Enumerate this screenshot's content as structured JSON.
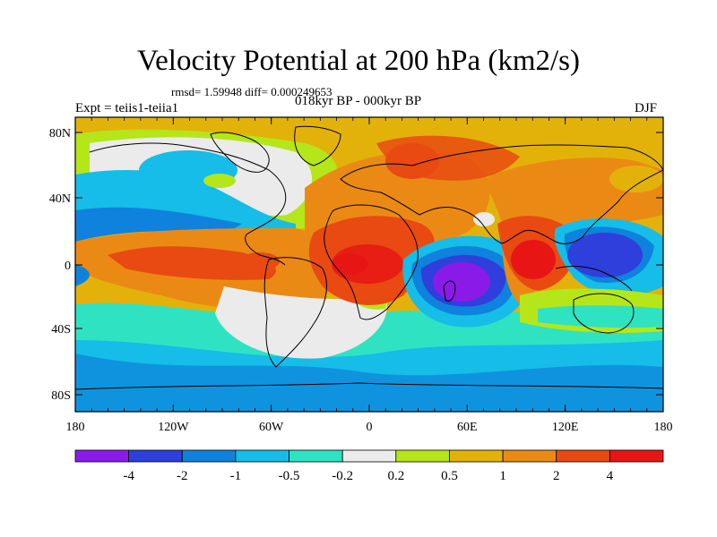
{
  "title": "Velocity Potential at 200 hPa (km2/s)",
  "stats": "rmsd= 1.59948 diff= 0.000249653",
  "period": "018kyr BP - 000kyr BP",
  "experiment": "Expt = teiis1-teiia1",
  "season": "DJF",
  "map": {
    "lat_ticks": [
      "80N",
      "40N",
      "0",
      "40S",
      "80S"
    ],
    "lon_ticks": [
      "180",
      "120W",
      "60W",
      "0",
      "60E",
      "120E",
      "180"
    ]
  },
  "colorbar": {
    "colors": [
      "#8a1ae8",
      "#2f3fdb",
      "#0e82dc",
      "#15bde8",
      "#2fe3c2",
      "#ebebeb",
      "#b5e61a",
      "#e3b20a",
      "#ea8a14",
      "#e84a12",
      "#e81515"
    ],
    "labels": [
      "-4",
      "-2",
      "-1",
      "-0.5",
      "-0.2",
      "0.2",
      "0.5",
      "1",
      "2",
      "4"
    ]
  }
}
